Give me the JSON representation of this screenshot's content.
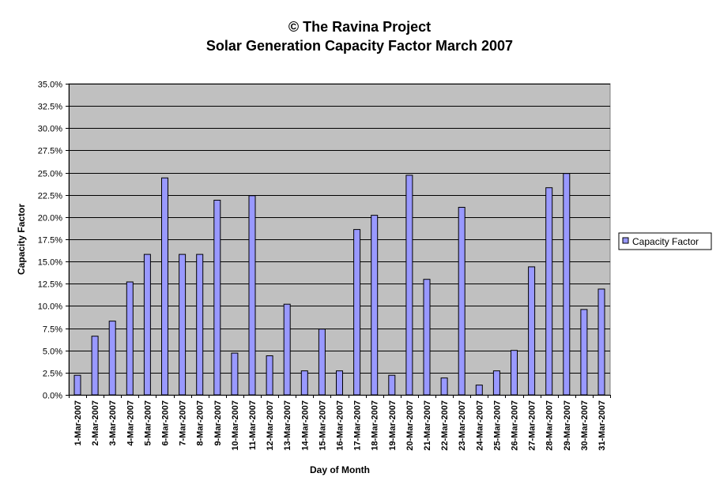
{
  "chart_data": {
    "type": "bar",
    "title": "© The Ravina Project",
    "subtitle": "Solar Generation Capacity Factor March 2007",
    "xlabel": "Day of Month",
    "ylabel": "Capacity Factor",
    "ylim": [
      0,
      35
    ],
    "ytick_step": 2.5,
    "ytick_format": "percent_1dp",
    "grid": "horizontal",
    "legend_position": "right",
    "plot_background": "#C0C0C0",
    "bar_color": "#9999FF",
    "bar_edge_color": "#000000",
    "categories": [
      "1-Mar-2007",
      "2-Mar-2007",
      "3-Mar-2007",
      "4-Mar-2007",
      "5-Mar-2007",
      "6-Mar-2007",
      "7-Mar-2007",
      "8-Mar-2007",
      "9-Mar-2007",
      "10-Mar-2007",
      "11-Mar-2007",
      "12-Mar-2007",
      "13-Mar-2007",
      "14-Mar-2007",
      "15-Mar-2007",
      "16-Mar-2007",
      "17-Mar-2007",
      "18-Mar-2007",
      "19-Mar-2007",
      "20-Mar-2007",
      "21-Mar-2007",
      "22-Mar-2007",
      "23-Mar-2007",
      "24-Mar-2007",
      "25-Mar-2007",
      "26-Mar-2007",
      "27-Mar-2007",
      "28-Mar-2007",
      "29-Mar-2007",
      "30-Mar-2007",
      "31-Mar-2007"
    ],
    "series": [
      {
        "name": "Capacity Factor",
        "values": [
          2.2,
          6.6,
          8.3,
          12.7,
          15.8,
          24.4,
          15.8,
          15.8,
          21.9,
          4.7,
          22.4,
          4.4,
          10.2,
          2.7,
          7.4,
          2.7,
          18.6,
          20.2,
          2.2,
          24.7,
          13.0,
          1.9,
          21.1,
          1.1,
          2.7,
          5.0,
          14.4,
          23.3,
          24.9,
          9.6,
          11.9
        ]
      }
    ]
  }
}
